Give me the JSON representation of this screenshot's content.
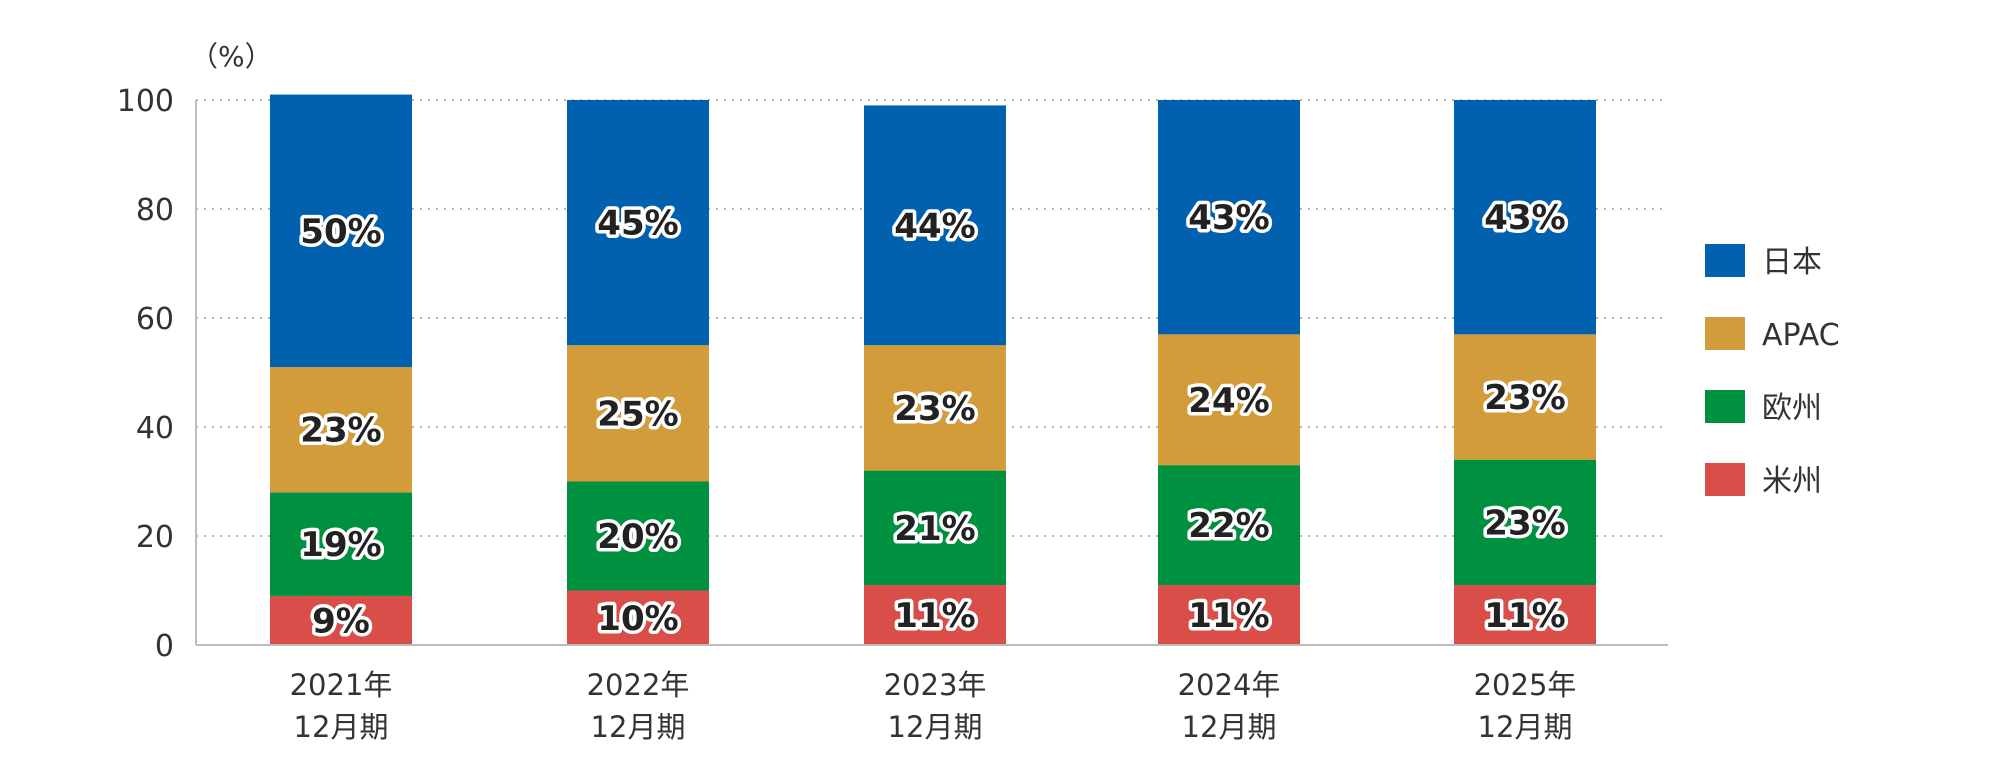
{
  "chart_data": {
    "type": "bar",
    "stacked": true,
    "unit_label": "（%）",
    "y_ticks": [
      "0",
      "20",
      "40",
      "60",
      "80",
      "100"
    ],
    "ylim": [
      0,
      100
    ],
    "grid": "dotted horizontal",
    "legend_position": "right",
    "categories": [
      [
        "2021年",
        "12月期"
      ],
      [
        "2022年",
        "12月期"
      ],
      [
        "2023年",
        "12月期"
      ],
      [
        "2024年",
        "12月期"
      ],
      [
        "2025年",
        "12月期"
      ]
    ],
    "series": [
      {
        "name": "米州",
        "color": "#d94e49",
        "values": [
          9,
          10,
          11,
          11,
          11
        ],
        "labels": [
          "9%",
          "10%",
          "11%",
          "11%",
          "11%"
        ]
      },
      {
        "name": "欧州",
        "color": "#009140",
        "values": [
          19,
          20,
          21,
          22,
          23
        ],
        "labels": [
          "19%",
          "20%",
          "21%",
          "22%",
          "23%"
        ]
      },
      {
        "name": "APAC",
        "color": "#d39c3b",
        "values": [
          23,
          25,
          23,
          24,
          23
        ],
        "labels": [
          "23%",
          "25%",
          "23%",
          "24%",
          "23%"
        ]
      },
      {
        "name": "日本",
        "color": "#0261af",
        "values": [
          50,
          45,
          44,
          43,
          43
        ],
        "labels": [
          "50%",
          "45%",
          "44%",
          "43%",
          "43%"
        ]
      }
    ],
    "legend_order": [
      "日本",
      "APAC",
      "欧州",
      "米州"
    ]
  }
}
